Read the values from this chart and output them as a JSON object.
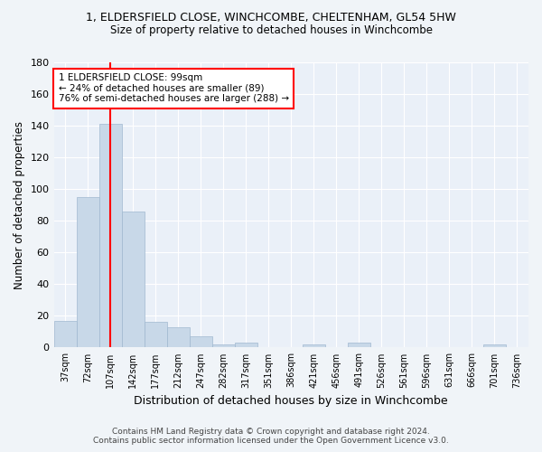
{
  "title1": "1, ELDERSFIELD CLOSE, WINCHCOMBE, CHELTENHAM, GL54 5HW",
  "title2": "Size of property relative to detached houses in Winchcombe",
  "xlabel": "Distribution of detached houses by size in Winchcombe",
  "ylabel": "Number of detached properties",
  "bin_labels": [
    "37sqm",
    "72sqm",
    "107sqm",
    "142sqm",
    "177sqm",
    "212sqm",
    "247sqm",
    "282sqm",
    "317sqm",
    "351sqm",
    "386sqm",
    "421sqm",
    "456sqm",
    "491sqm",
    "526sqm",
    "561sqm",
    "596sqm",
    "631sqm",
    "666sqm",
    "701sqm",
    "736sqm"
  ],
  "bar_heights": [
    17,
    95,
    141,
    86,
    16,
    13,
    7,
    2,
    3,
    0,
    0,
    2,
    0,
    3,
    0,
    0,
    0,
    0,
    0,
    2,
    0
  ],
  "bar_color": "#c8d8e8",
  "bar_edge_color": "#a0b8d0",
  "red_line_x": 2,
  "ylim": [
    0,
    180
  ],
  "yticks": [
    0,
    20,
    40,
    60,
    80,
    100,
    120,
    140,
    160,
    180
  ],
  "annotation_line1": "1 ELDERSFIELD CLOSE: 99sqm",
  "annotation_line2": "← 24% of detached houses are smaller (89)",
  "annotation_line3": "76% of semi-detached houses are larger (288) →",
  "footer1": "Contains HM Land Registry data © Crown copyright and database right 2024.",
  "footer2": "Contains public sector information licensed under the Open Government Licence v3.0.",
  "bg_color": "#f0f4f8",
  "plot_bg_color": "#eaf0f8"
}
